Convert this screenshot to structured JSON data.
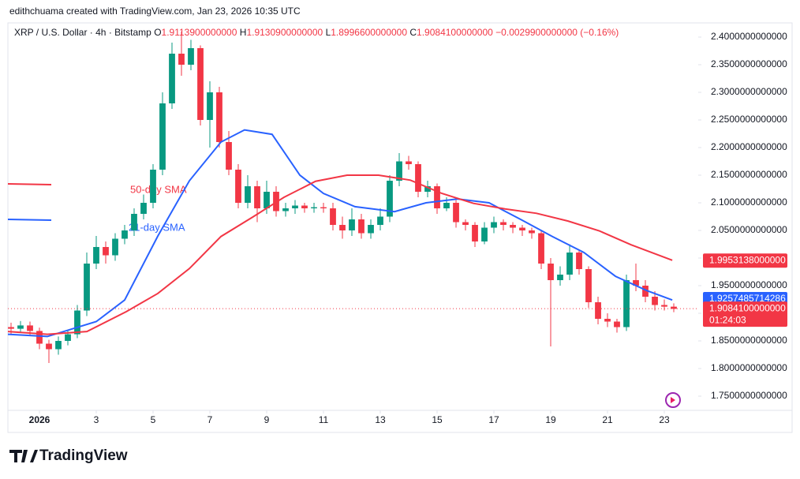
{
  "chart_data": {
    "type": "candlestick",
    "attribution": "edithchuama created with TradingView.com, Jan 23, 2026 10:35 UTC",
    "symbol": "XRP / U.S. Dollar · 4h · Bitstamp",
    "ohlc_legend": [
      {
        "key": "O",
        "text": "1.9113900000000"
      },
      {
        "key": "H",
        "text": "1.9130900000000"
      },
      {
        "key": "L",
        "text": "1.8996600000000"
      },
      {
        "key": "C",
        "text": "1.9084100000000"
      },
      {
        "key": "",
        "text": "−0.0029900000000 (−0.16%)"
      }
    ],
    "x": [
      0,
      0.333,
      0.667,
      1,
      1.333,
      1.667,
      2,
      2.333,
      2.667,
      3,
      3.333,
      3.667,
      4,
      4.333,
      4.667,
      5,
      5.333,
      5.667,
      6,
      6.333,
      6.667,
      7,
      7.333,
      7.667,
      8,
      8.333,
      8.667,
      9,
      9.333,
      9.667,
      10,
      10.333,
      10.667,
      11,
      11.333,
      11.667,
      12,
      12.333,
      12.667,
      13,
      13.333,
      13.667,
      14,
      14.333,
      14.667,
      15,
      15.333,
      15.667,
      16,
      16.333,
      16.667,
      17,
      17.333,
      17.667,
      18,
      18.333,
      18.667,
      19,
      19.333,
      19.667,
      20,
      20.333,
      20.667,
      21,
      21.333,
      21.667,
      22,
      22.333,
      22.667,
      23,
      23.333
    ],
    "open": [
      1.875,
      1.872,
      1.878,
      1.868,
      1.845,
      1.835,
      1.85,
      1.862,
      1.905,
      1.99,
      2.02,
      2.005,
      2.035,
      2.05,
      2.08,
      2.1,
      2.16,
      2.28,
      2.37,
      2.35,
      2.38,
      2.25,
      2.3,
      2.21,
      2.16,
      2.1,
      2.13,
      2.09,
      2.12,
      2.085,
      2.09,
      2.095,
      2.09,
      2.092,
      2.09,
      2.06,
      2.05,
      2.07,
      2.045,
      2.06,
      2.075,
      2.14,
      2.175,
      2.17,
      2.12,
      2.13,
      2.09,
      2.1,
      2.065,
      2.06,
      2.03,
      2.055,
      2.065,
      2.06,
      2.055,
      2.05,
      2.045,
      1.99,
      1.96,
      1.97,
      2.01,
      1.98,
      1.92,
      1.89,
      1.885,
      1.875,
      1.96,
      1.95,
      1.93,
      1.915,
      1.912
    ],
    "high": [
      1.883,
      1.886,
      1.885,
      1.874,
      1.852,
      1.858,
      1.87,
      1.915,
      2.01,
      2.04,
      2.03,
      2.045,
      2.06,
      2.09,
      2.115,
      2.17,
      2.3,
      2.39,
      2.41,
      2.395,
      2.385,
      2.32,
      2.31,
      2.23,
      2.17,
      2.15,
      2.14,
      2.14,
      2.13,
      2.1,
      2.105,
      2.1,
      2.1,
      2.1,
      2.1,
      2.075,
      2.09,
      2.08,
      2.07,
      2.09,
      2.15,
      2.19,
      2.185,
      2.175,
      2.14,
      2.135,
      2.11,
      2.105,
      2.07,
      2.065,
      2.065,
      2.075,
      2.07,
      2.065,
      2.06,
      2.055,
      2.05,
      2.0,
      1.985,
      2.025,
      2.015,
      1.985,
      1.93,
      1.9,
      1.89,
      1.97,
      1.99,
      1.96,
      1.94,
      1.925,
      1.918
    ],
    "low": [
      1.862,
      1.865,
      1.86,
      1.835,
      1.81,
      1.825,
      1.842,
      1.855,
      1.895,
      1.98,
      1.99,
      1.995,
      2.025,
      2.04,
      2.07,
      2.09,
      2.15,
      2.27,
      2.33,
      2.34,
      2.24,
      2.2,
      2.2,
      2.15,
      2.09,
      2.09,
      2.065,
      2.08,
      2.075,
      2.075,
      2.08,
      2.082,
      2.082,
      2.082,
      2.05,
      2.035,
      2.04,
      2.035,
      2.035,
      2.05,
      2.065,
      2.13,
      2.16,
      2.11,
      2.11,
      2.08,
      2.085,
      2.055,
      2.05,
      2.02,
      2.025,
      2.045,
      2.05,
      2.045,
      2.04,
      2.035,
      1.98,
      1.84,
      1.95,
      1.96,
      1.97,
      1.91,
      1.88,
      1.875,
      1.865,
      1.868,
      1.94,
      1.92,
      1.905,
      1.905,
      1.902
    ],
    "close": [
      1.872,
      1.878,
      1.868,
      1.845,
      1.835,
      1.85,
      1.862,
      1.905,
      1.99,
      2.02,
      2.005,
      2.035,
      2.05,
      2.08,
      2.1,
      2.16,
      2.28,
      2.37,
      2.35,
      2.38,
      2.25,
      2.3,
      2.21,
      2.16,
      2.1,
      2.13,
      2.09,
      2.12,
      2.085,
      2.09,
      2.095,
      2.09,
      2.092,
      2.09,
      2.06,
      2.05,
      2.07,
      2.045,
      2.06,
      2.075,
      2.14,
      2.175,
      2.17,
      2.12,
      2.13,
      2.09,
      2.1,
      2.065,
      2.06,
      2.03,
      2.055,
      2.065,
      2.06,
      2.055,
      2.05,
      2.045,
      1.99,
      1.96,
      1.97,
      2.01,
      1.98,
      1.92,
      1.89,
      1.885,
      1.875,
      1.96,
      1.95,
      1.93,
      1.915,
      1.912,
      1.908
    ],
    "up_color": "#089981",
    "down_color": "#f23645",
    "series": [
      {
        "name": "21-day SMA",
        "color": "#2962ff",
        "x": [
          -0.11,
          1.28,
          3,
          4,
          5.17,
          6.28,
          7.39,
          8.22,
          9.19,
          10.17,
          11,
          12.11,
          13.5,
          14.61,
          15.72,
          16.83,
          17.94,
          19.06,
          20.17,
          21.28,
          22.39,
          23.28
        ],
        "values": [
          1.862,
          1.858,
          1.885,
          1.924,
          2.04,
          2.14,
          2.21,
          2.232,
          2.224,
          2.15,
          2.117,
          2.093,
          2.084,
          2.1,
          2.107,
          2.1,
          2.07,
          2.039,
          2.01,
          1.967,
          1.941,
          1.924
        ]
      },
      {
        "name": "50-day SMA",
        "color": "#f23645",
        "x": [
          -0.11,
          1.28,
          2.67,
          4.06,
          5.17,
          6.28,
          7.39,
          8.5,
          9.61,
          10.72,
          11.83,
          12.94,
          14.06,
          15.17,
          16.28,
          17.39,
          18.5,
          19.61,
          20.72,
          21.83,
          23.28
        ],
        "values": [
          1.867,
          1.862,
          1.867,
          1.903,
          1.936,
          1.981,
          2.039,
          2.074,
          2.11,
          2.139,
          2.15,
          2.15,
          2.141,
          2.117,
          2.099,
          2.089,
          2.081,
          2.067,
          2.049,
          2.024,
          1.996
        ]
      }
    ],
    "price_labels": [
      {
        "value": 1.9953138,
        "label": "1.9953138000000",
        "color": "#f23645"
      },
      {
        "value": 1.9257485714286,
        "label": "1.9257485714286",
        "color": "#2962ff"
      },
      {
        "value": 1.90841,
        "label": "1.9084100000000",
        "color": "#f23645",
        "countdown": "01:24:03"
      }
    ],
    "xlim": [
      -0.111,
      24.194
    ],
    "ylim": [
      1.7243,
      2.4243
    ],
    "xticks": [
      {
        "value": 1,
        "label": "2026"
      },
      3,
      5,
      7,
      9,
      11,
      13,
      15,
      17,
      19,
      21,
      23
    ],
    "yticks": [
      {
        "value": 2.4,
        "label": "2.4000000000000"
      },
      {
        "value": 2.35,
        "label": "2.3500000000000"
      },
      {
        "value": 2.3,
        "label": "2.3000000000000"
      },
      {
        "value": 2.25,
        "label": "2.2500000000000"
      },
      {
        "value": 2.2,
        "label": "2.2000000000000"
      },
      {
        "value": 2.15,
        "label": "2.1500000000000"
      },
      {
        "value": 2.1,
        "label": "2.1000000000000"
      },
      {
        "value": 2.05,
        "label": "2.0500000000000"
      },
      {
        "value": 2.0,
        "label": "2.0000000000000"
      },
      {
        "value": 1.95,
        "label": "1.9500000000000"
      },
      {
        "value": 1.9,
        "label": "1.9000000000000"
      },
      {
        "value": 1.85,
        "label": "1.8500000000000"
      },
      {
        "value": 1.8,
        "label": "1.8000000000000"
      },
      {
        "value": 1.75,
        "label": "1.7500000000000"
      }
    ],
    "grid": false
  },
  "brand": "TradingView"
}
